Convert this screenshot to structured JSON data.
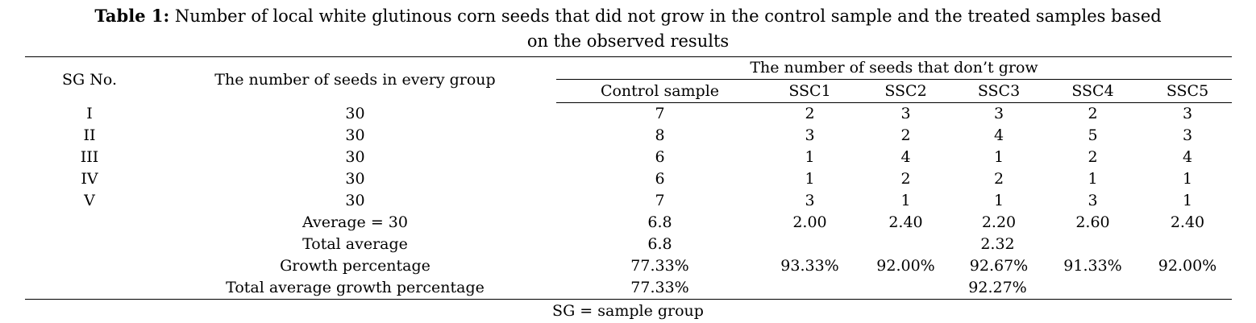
{
  "caption": {
    "label": "Table 1:",
    "line1": "Number of local white glutinous corn seeds that did not grow in the control sample and the treated samples based",
    "line2": "on the observed results"
  },
  "table": {
    "headers": {
      "sg_no": "SG No.",
      "seeds_per_group": "The number of seeds in every group",
      "not_grow_group": "The number of seeds that don’t grow",
      "control": "Control sample",
      "ssc": [
        "SSC1",
        "SSC2",
        "SSC3",
        "SSC4",
        "SSC5"
      ]
    },
    "rows": [
      {
        "sg": "I",
        "seeds": "30",
        "control": "7",
        "ssc": [
          "2",
          "3",
          "3",
          "2",
          "3"
        ]
      },
      {
        "sg": "II",
        "seeds": "30",
        "control": "8",
        "ssc": [
          "3",
          "2",
          "4",
          "5",
          "3"
        ]
      },
      {
        "sg": "III",
        "seeds": "30",
        "control": "6",
        "ssc": [
          "1",
          "4",
          "1",
          "2",
          "4"
        ]
      },
      {
        "sg": "IV",
        "seeds": "30",
        "control": "6",
        "ssc": [
          "1",
          "2",
          "2",
          "1",
          "1"
        ]
      },
      {
        "sg": "V",
        "seeds": "30",
        "control": "7",
        "ssc": [
          "3",
          "1",
          "1",
          "3",
          "1"
        ]
      }
    ],
    "summary": {
      "average": {
        "label": "Average = 30",
        "control": "6.8",
        "ssc": [
          "2.00",
          "2.40",
          "2.20",
          "2.60",
          "2.40"
        ]
      },
      "total_average": {
        "label": "Total average",
        "control": "6.8",
        "ssc_total": "2.32"
      },
      "growth": {
        "label": "Growth percentage",
        "control": "77.33%",
        "ssc": [
          "93.33%",
          "92.00%",
          "92.67%",
          "91.33%",
          "92.00%"
        ]
      },
      "total_growth": {
        "label": "Total average growth percentage",
        "control": "77.33%",
        "ssc_total": "92.27%"
      }
    }
  },
  "footnote": "SG = sample group"
}
